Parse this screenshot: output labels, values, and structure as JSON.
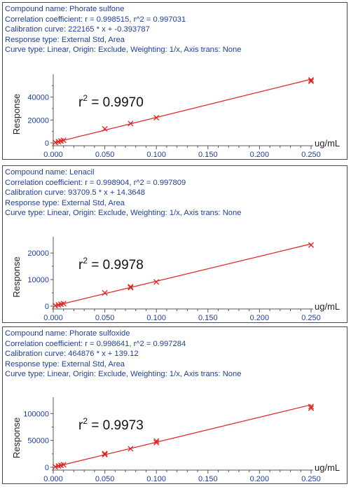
{
  "panels": [
    {
      "compound_label": "Compound name:",
      "compound": "Phorate sulfone",
      "corr_label": "Correlation coefficient:",
      "corr": "r = 0.998515, r^2 = 0.997031",
      "calib_label": "Calibration curve:",
      "calib": "222165 * x + -0.393787",
      "resp_label": "Response type:",
      "resp": "External Std, Area",
      "curve_label": "Curve type:",
      "curve": "Linear, Origin: Exclude, Weighting: 1/x, Axis trans: None",
      "r2_text": "= 0.9970"
    },
    {
      "compound_label": "Compound name:",
      "compound": "Lenacil",
      "corr_label": "Correlation coefficient:",
      "corr": "r = 0.998904, r^2 = 0.997809",
      "calib_label": "Calibration curve:",
      "calib": "93709.5 * x + 14.3648",
      "resp_label": "Response type:",
      "resp": "External Std, Area",
      "curve_label": "Curve type:",
      "curve": "Linear, Origin: Exclude, Weighting: 1/x, Axis trans: None",
      "r2_text": "= 0.9978"
    },
    {
      "compound_label": "Compound name:",
      "compound": "Phorate sulfoxide",
      "corr_label": "Correlation coefficient:",
      "corr": "r = 0.998641, r^2 = 0.997284",
      "calib_label": "Calibration curve:",
      "calib": "464876 * x + 139.12",
      "resp_label": "Response type:",
      "resp": "External Std, Area",
      "curve_label": "Curve type:",
      "curve": "Linear, Origin: Exclude, Weighting: 1/x, Axis trans: None",
      "r2_text": "= 0.9973"
    }
  ],
  "colors": {
    "header_text": "#1f3f9a",
    "curve": "#e02020",
    "axis": "#555555"
  },
  "chart_data": [
    {
      "type": "scatter",
      "title": "",
      "xlabel": "ug/mL",
      "ylabel": "Response",
      "xlim": [
        0,
        0.25
      ],
      "ylim": [
        0,
        55000
      ],
      "x_ticks": [
        0.0,
        0.05,
        0.1,
        0.15,
        0.2,
        0.25
      ],
      "x_tick_labels": [
        "0.000",
        "0.050",
        "0.100",
        "0.150",
        "0.200",
        "0.250"
      ],
      "y_ticks": [
        0,
        20000,
        40000
      ],
      "y_tick_labels": [
        "0",
        "20000",
        "40000"
      ],
      "fit": {
        "slope": 222165,
        "intercept": -0.393787
      },
      "points": [
        {
          "x": 0.002,
          "y": 444
        },
        {
          "x": 0.005,
          "y": 1111
        },
        {
          "x": 0.0075,
          "y": 1666
        },
        {
          "x": 0.01,
          "y": 2222
        },
        {
          "x": 0.05,
          "y": 12300
        },
        {
          "x": 0.075,
          "y": 16900
        },
        {
          "x": 0.1,
          "y": 22000
        },
        {
          "x": 0.25,
          "y": 53800
        },
        {
          "x": 0.25,
          "y": 55000
        }
      ],
      "annotation": "r2 = 0.9970",
      "grid": false,
      "legend": "none"
    },
    {
      "type": "scatter",
      "title": "",
      "xlabel": "ug/mL",
      "ylabel": "Response",
      "xlim": [
        0,
        0.25
      ],
      "ylim": [
        0,
        24000
      ],
      "x_ticks": [
        0.0,
        0.05,
        0.1,
        0.15,
        0.2,
        0.25
      ],
      "x_tick_labels": [
        "0.000",
        "0.050",
        "0.100",
        "0.150",
        "0.200",
        "0.250"
      ],
      "y_ticks": [
        0,
        10000,
        20000
      ],
      "y_tick_labels": [
        "0",
        "10000",
        "20000"
      ],
      "fit": {
        "slope": 93709.5,
        "intercept": 14.3648
      },
      "points": [
        {
          "x": 0.002,
          "y": 200
        },
        {
          "x": 0.005,
          "y": 480
        },
        {
          "x": 0.0075,
          "y": 710
        },
        {
          "x": 0.01,
          "y": 950
        },
        {
          "x": 0.05,
          "y": 5000
        },
        {
          "x": 0.075,
          "y": 7000
        },
        {
          "x": 0.075,
          "y": 7300
        },
        {
          "x": 0.1,
          "y": 9100
        },
        {
          "x": 0.25,
          "y": 23000
        }
      ],
      "annotation": "r2 = 0.9978",
      "grid": false,
      "legend": "none"
    },
    {
      "type": "scatter",
      "title": "",
      "xlabel": "ug/mL",
      "ylabel": "Response",
      "xlim": [
        0,
        0.25
      ],
      "ylim": [
        0,
        120000
      ],
      "x_ticks": [
        0.0,
        0.05,
        0.1,
        0.15,
        0.2,
        0.25
      ],
      "x_tick_labels": [
        "0.000",
        "0.050",
        "0.100",
        "0.150",
        "0.200",
        "0.250"
      ],
      "y_ticks": [
        0,
        50000,
        100000
      ],
      "y_tick_labels": [
        "0",
        "50000",
        "100000"
      ],
      "fit": {
        "slope": 464876,
        "intercept": 139.12
      },
      "points": [
        {
          "x": 0.002,
          "y": 1000
        },
        {
          "x": 0.005,
          "y": 2500
        },
        {
          "x": 0.0075,
          "y": 3600
        },
        {
          "x": 0.01,
          "y": 4800
        },
        {
          "x": 0.05,
          "y": 23500
        },
        {
          "x": 0.05,
          "y": 25500
        },
        {
          "x": 0.075,
          "y": 34500
        },
        {
          "x": 0.1,
          "y": 46000
        },
        {
          "x": 0.1,
          "y": 49000
        },
        {
          "x": 0.25,
          "y": 110000
        },
        {
          "x": 0.25,
          "y": 113000
        }
      ],
      "annotation": "r2 = 0.9973",
      "grid": false,
      "legend": "none"
    }
  ]
}
